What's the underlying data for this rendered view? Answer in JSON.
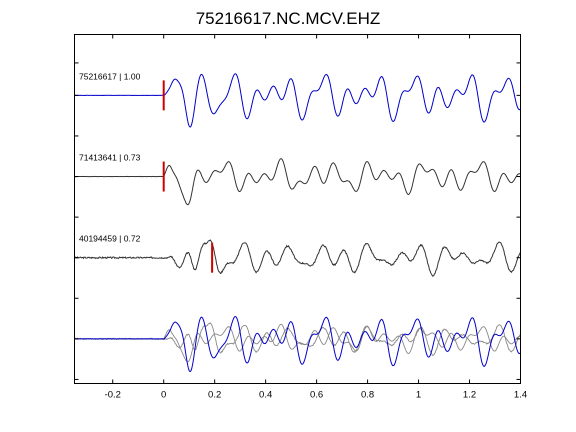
{
  "chart_data": {
    "type": "line",
    "title": "75216617.NC.MCV.EHZ",
    "xlabel": "",
    "ylabel": "",
    "xlim": [
      -0.35,
      1.4
    ],
    "xticks": [
      -0.2,
      0,
      0.2,
      0.4,
      0.6,
      0.8,
      1,
      1.2,
      1.4
    ],
    "xtick_labels": [
      "-0.2",
      "0",
      "0.2",
      "0.4",
      "0.6",
      "0.8",
      "1",
      "1.2",
      "1.4"
    ],
    "grid": false,
    "colors": {
      "reference": "#0000cc",
      "match": "#333333",
      "overlay": "#888888",
      "pick": "#cc0000",
      "axes": "#000000"
    },
    "traces": [
      {
        "label": "75216617 | 1.00",
        "event_id": "75216617",
        "correlation": 1.0,
        "pick_time": 0.0,
        "color": "#0000cc",
        "baseline_y": 1.0,
        "noise": 0.004,
        "amp": 0.32,
        "onset": 0.0,
        "seed": 1,
        "pulses": [
          [
            0.04,
            0.8,
            0.02
          ],
          [
            0.1,
            -1.0,
            0.025
          ],
          [
            0.17,
            0.55,
            0.03
          ],
          [
            0.22,
            -0.5,
            0.03
          ]
        ],
        "osc": [
          [
            0.0,
            8.5,
            0.0
          ],
          [
            0.0,
            14.0,
            1.3
          ],
          [
            0.1,
            5.5,
            2.1
          ]
        ]
      },
      {
        "label": "71413641 | 0.73",
        "event_id": "71413641",
        "correlation": 0.73,
        "pick_time": 0.0,
        "color": "#333333",
        "baseline_y": 2.0,
        "noise": 0.006,
        "amp": 0.22,
        "onset": 0.0,
        "seed": 2,
        "pulses": [
          [
            0.02,
            0.7,
            0.015
          ],
          [
            0.065,
            -0.8,
            0.02
          ],
          [
            0.1,
            -1.0,
            0.025
          ],
          [
            0.16,
            0.45,
            0.03
          ]
        ],
        "osc": [
          [
            0.0,
            9.0,
            0.6
          ],
          [
            0.0,
            15.0,
            2.0
          ],
          [
            0.0,
            5.0,
            0.4
          ]
        ]
      },
      {
        "label": "40194459 | 0.72",
        "event_id": "40194459",
        "correlation": 0.72,
        "pick_time": 0.19,
        "color": "#333333",
        "baseline_y": 3.0,
        "noise": 0.045,
        "amp": 0.2,
        "onset": 0.02,
        "seed": 3,
        "pulses": [
          [
            0.03,
            0.4,
            0.02
          ],
          [
            0.13,
            0.8,
            0.02
          ],
          [
            0.17,
            1.0,
            0.02
          ],
          [
            0.1,
            -1.1,
            0.02
          ],
          [
            0.2,
            -0.7,
            0.025
          ]
        ],
        "osc": [
          [
            0.0,
            10.0,
            1.1
          ],
          [
            0.0,
            13.0,
            0.2
          ],
          [
            0.0,
            6.0,
            2.5
          ]
        ]
      },
      {
        "label": "",
        "overlay": true,
        "baseline_y": 4.0
      }
    ],
    "ylim": [
      0.25,
      4.55
    ]
  }
}
